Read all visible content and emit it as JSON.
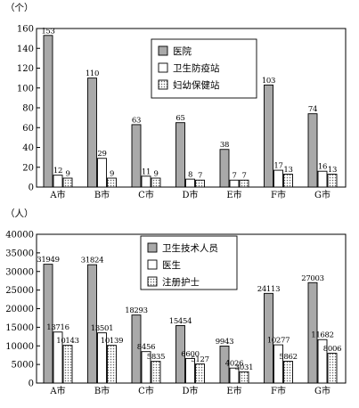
{
  "colors": {
    "s0": "#a9a9a9",
    "s1": "#ffffff",
    "s2": "#cfcfcf"
  },
  "chart_data": [
    {
      "type": "bar",
      "unit": "（个）",
      "categories": [
        "A市",
        "B市",
        "C市",
        "D市",
        "E市",
        "F市",
        "G市"
      ],
      "ylim": [
        0,
        160
      ],
      "yticks": [
        0,
        20,
        40,
        60,
        80,
        100,
        120,
        140,
        160
      ],
      "grid": false,
      "legend_position": "top-right",
      "series": [
        {
          "name": "医院",
          "values": [
            153,
            110,
            63,
            65,
            38,
            103,
            74
          ]
        },
        {
          "name": "卫生防疫站",
          "values": [
            12,
            29,
            11,
            8,
            7,
            17,
            16
          ]
        },
        {
          "name": "妇幼保健站",
          "values": [
            9,
            9,
            9,
            7,
            7,
            13,
            13
          ]
        }
      ]
    },
    {
      "type": "bar",
      "unit": "（人）",
      "categories": [
        "A市",
        "B市",
        "C市",
        "D市",
        "E市",
        "F市",
        "G市"
      ],
      "ylim": [
        0,
        40000
      ],
      "yticks": [
        0,
        5000,
        10000,
        15000,
        20000,
        25000,
        30000,
        35000,
        40000
      ],
      "grid": false,
      "legend_position": "top-center",
      "series": [
        {
          "name": "卫生技术人员",
          "values": [
            31949,
            31824,
            18293,
            15454,
            9943,
            24113,
            27003
          ]
        },
        {
          "name": "医生",
          "values": [
            13716,
            13501,
            8456,
            6600,
            4026,
            10277,
            11682
          ]
        },
        {
          "name": "注册护士",
          "values": [
            10143,
            10139,
            5835,
            5127,
            3031,
            5862,
            8006
          ]
        }
      ]
    }
  ]
}
